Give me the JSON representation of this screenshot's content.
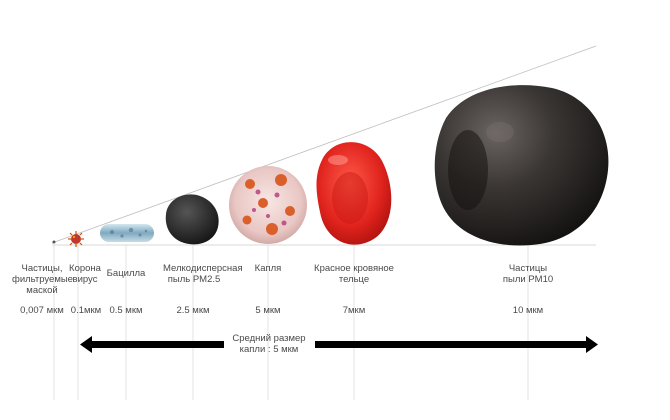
{
  "particles": [
    {
      "name": "Частицы, фильтруемые маской",
      "size": "0,007 мкм",
      "color": "#555555",
      "icon": "dot"
    },
    {
      "name": "Корона вирус",
      "size": "0.1мкм",
      "color": "#c0392b",
      "icon": "coronavirus"
    },
    {
      "name": "Бацилла",
      "size": "0.5 мкм",
      "color": "#8fb3c8",
      "icon": "bacillus"
    },
    {
      "name": "Мелкодисперсная пыль PM2.5",
      "size": "2.5 мкм",
      "color": "#2a2a2a",
      "icon": "dust-small"
    },
    {
      "name": "Капля",
      "size": "5 мкм",
      "color": "#e8c9c6",
      "icon": "droplet"
    },
    {
      "name": "Красное кровяное тельце",
      "size": "7мкм",
      "color": "#e0231d",
      "icon": "red-blood-cell"
    },
    {
      "name": "Частицы пыли PM10",
      "size": "10 мкм",
      "color": "#2e2b29",
      "icon": "dust-large"
    }
  ],
  "average": {
    "label": "Средний размер капли : 5 мкм"
  },
  "colors": {
    "arrow": "#000000",
    "baseline": "#cccccc"
  }
}
